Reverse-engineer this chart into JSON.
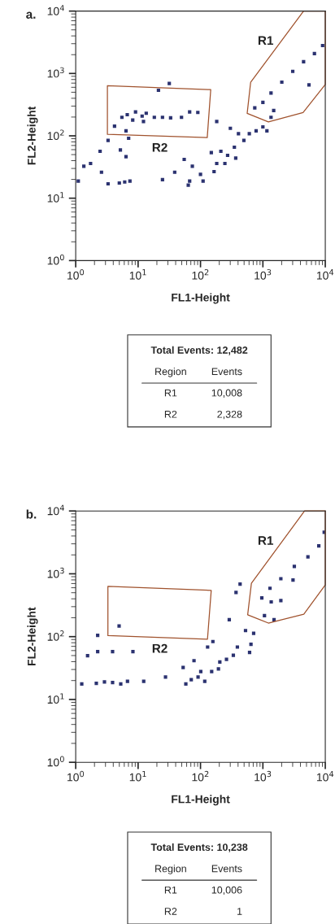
{
  "chart_data": [
    {
      "type": "scatter",
      "title": "a.",
      "xlabel": "FL1-Height",
      "ylabel": "FL2-Height",
      "log": "xy",
      "xlim": [
        1,
        10000
      ],
      "ylim": [
        1,
        10000
      ],
      "xticks": [
        {
          "value": 1,
          "label": "10$^{0}$"
        },
        {
          "value": 10,
          "label": "10$^{1}$"
        },
        {
          "value": 100,
          "label": "10$^{2}$"
        },
        {
          "value": 1000,
          "label": "10$^{3}$"
        },
        {
          "value": 10000,
          "label": "10$^{4}$"
        }
      ],
      "yticks": [
        {
          "value": 1,
          "label": "10$^{0}$"
        },
        {
          "value": 10,
          "label": "10$^{1}$"
        },
        {
          "value": 100,
          "label": "10$^{2}$"
        },
        {
          "value": 1000,
          "label": "10$^{3}$"
        },
        {
          "value": 10000,
          "label": "10$^{4}$"
        }
      ],
      "marker": "square",
      "grid": false,
      "legend": false,
      "series": [
        {
          "color": "#2b3270",
          "x": [
            6.7,
            9.1,
            11.6,
            13.5,
            18.2,
            8.2,
            12.2,
            24.6,
            33.2,
            49.6,
            67,
            90.6,
            5.5,
            31.6,
            1000,
            1350,
            2010,
            3010,
            4490,
            6700,
            9060,
            5480,
            1350,
            741,
            1490,
            182,
            301,
            406,
            606,
            779,
            1000,
            1160,
            496,
            349,
            272,
            246,
            165,
            182,
            100,
            110,
            67,
            63.7,
            38.6,
            24.6,
            54.8,
            74,
            149,
            212,
            367,
            6.1,
            5.0,
            7.4,
            3.3,
            1.1,
            1.35,
            1.73,
            2.59,
            2.46,
            3.3,
            6.4,
            5.2,
            4.19,
            6.4,
            7.05,
            21.2
          ],
          "values": [
            218,
            241,
            207,
            230,
            198,
            179,
            170,
            198,
            194,
            198,
            241,
            237,
            198,
            690,
            343,
            486,
            726,
            1080,
            1540,
            2080,
            2800,
            656,
            198,
            280,
            254,
            170,
            132,
            108,
            108,
            120,
            139,
            120,
            84.3,
            65.6,
            48.6,
            36,
            26.7,
            36,
            24.1,
            18.8,
            18.8,
            16.2,
            26.1,
            19.8,
            41.9,
            32.6,
            53.7,
            56.5,
            44,
            18.2,
            17.5,
            18.8,
            17,
            18.8,
            32.6,
            36,
            26.1,
            56.5,
            84.3,
            46.2,
            59.4,
            143,
            120,
            91.4,
            537
          ]
        }
      ],
      "annotations": [
        "R1",
        "R2",
        "Total Events: 12,482",
        "Region",
        "Events",
        "R1",
        "10,008",
        "R2",
        "2,328"
      ]
    },
    {
      "type": "scatter",
      "title": "b.",
      "xlabel": "FL1-Height",
      "ylabel": "FL2-Height",
      "log": "xy",
      "xlim": [
        1,
        10000
      ],
      "ylim": [
        1,
        10000
      ],
      "xticks": [
        {
          "value": 1,
          "label": "10$^{0}$"
        },
        {
          "value": 10,
          "label": "10$^{1}$"
        },
        {
          "value": 100,
          "label": "10$^{2}$"
        },
        {
          "value": 1000,
          "label": "10$^{3}$"
        },
        {
          "value": 10000,
          "label": "10$^{4}$"
        }
      ],
      "yticks": [
        {
          "value": 1,
          "label": "10$^{0}$"
        },
        {
          "value": 10,
          "label": "10$^{1}$"
        },
        {
          "value": 100,
          "label": "10$^{2}$"
        },
        {
          "value": 1000,
          "label": "10$^{3}$"
        },
        {
          "value": 10000,
          "label": "10$^{4}$"
        }
      ],
      "marker": "square",
      "grid": false,
      "legend": false,
      "series": [
        {
          "color": "#2b3270",
          "x": [
            961,
            1300,
            1940,
            3190,
            5270,
            7870,
            9610,
            3040,
            1940,
            1360,
            1060,
            1510,
            371,
            431,
            4.96,
            711,
            527,
            644,
            612,
            390,
            336,
            261,
            204,
            194,
            151,
            101,
            91.4,
            117,
            71.1,
            58.2,
            78.7,
            52.7,
            27.5,
            130,
            289,
            158,
            2.89,
            3.9,
            5.27,
            6.76,
            1.25,
            2.14,
            12.3,
            8.26,
            2.25,
            2.25,
            1.55,
            3.9
          ],
          "values": [
            414,
            588,
            835,
            1310,
            1860,
            2780,
            4580,
            794,
            375,
            357,
            216,
            186,
            506,
            684,
            148,
            113,
            125,
            75.5,
            56,
            68.3,
            50.6,
            43.6,
            39.4,
            30.7,
            27.8,
            27.8,
            22.7,
            19.5,
            20.6,
            17.7,
            41.4,
            32.3,
            22.7,
            68.3,
            186,
            83.6,
            19,
            18.6,
            17.7,
            19.5,
            17.7,
            18.1,
            19.5,
            57.7,
            105,
            57.7,
            49.7,
            57.7
          ]
        }
      ],
      "annotations": [
        "R1",
        "R2",
        "Total Events: 10,238",
        "Region",
        "Events",
        "R1",
        "10,006",
        "R2",
        "1"
      ]
    }
  ]
}
